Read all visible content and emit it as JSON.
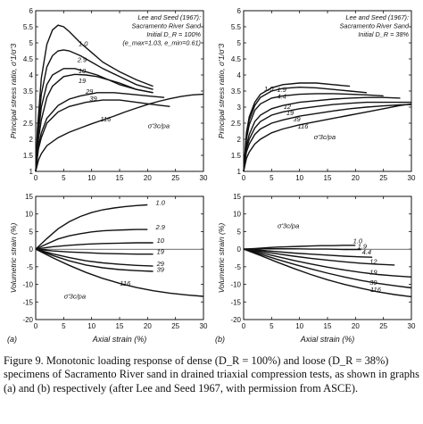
{
  "figure_caption": "Figure 9.  Monotonic loading response of dense (D_R = 100%) and loose (D_R = 38%) specimens of Sacramento River sand in drained triaxial compression tests, as shown in graphs (a) and (b) respectively (after Lee and Seed 1967, with permission from ASCE).",
  "chart_data": [
    {
      "id": "a-stress",
      "type": "line",
      "panel_label": "",
      "ylabel": "Principal stress ratio, σ'1/σ'3",
      "xlabel": "",
      "xlim": [
        0,
        30
      ],
      "ylim": [
        1,
        6
      ],
      "xticks": [
        0,
        5,
        10,
        15,
        20,
        25,
        30
      ],
      "yticks": [
        1,
        1.5,
        2,
        2.5,
        3,
        3.5,
        4,
        4.5,
        5,
        5.5,
        6
      ],
      "annotation": [
        "Lee and Seed (1967):",
        "Sacramento River Sand",
        "Initial D_R = 100%",
        "(e_max=1.03, e_min=0.61)"
      ],
      "label_key": "σ'3c/pa",
      "series": [
        {
          "name": "1.0",
          "x": [
            0,
            0.3,
            1,
            2,
            3,
            4,
            5,
            6,
            8,
            10,
            12,
            15,
            18,
            21
          ],
          "y": [
            1,
            2.3,
            3.9,
            4.95,
            5.4,
            5.55,
            5.5,
            5.35,
            5.0,
            4.7,
            4.4,
            4.1,
            3.85,
            3.65
          ]
        },
        {
          "name": "2.9",
          "x": [
            0,
            0.4,
            1,
            2,
            3,
            4,
            5,
            6,
            8,
            10,
            12,
            15,
            18,
            21
          ],
          "y": [
            1,
            2.2,
            3.4,
            4.25,
            4.6,
            4.75,
            4.78,
            4.75,
            4.6,
            4.4,
            4.2,
            3.95,
            3.7,
            3.55
          ]
        },
        {
          "name": "10",
          "x": [
            0,
            0.5,
            1,
            2,
            3,
            5,
            7,
            9,
            11,
            13,
            15,
            18,
            21
          ],
          "y": [
            1,
            2.2,
            3.0,
            3.7,
            4.0,
            4.2,
            4.2,
            4.1,
            4.0,
            3.85,
            3.75,
            3.55,
            3.45
          ]
        },
        {
          "name": "19",
          "x": [
            0,
            0.5,
            1,
            2,
            3,
            5,
            7,
            9,
            11,
            13,
            15,
            18,
            21
          ],
          "y": [
            1,
            2.0,
            2.6,
            3.3,
            3.65,
            3.95,
            4.02,
            4.0,
            3.95,
            3.85,
            3.7,
            3.55,
            3.45
          ]
        },
        {
          "name": "29",
          "x": [
            0,
            0.5,
            1,
            2,
            4,
            6,
            8,
            11,
            14,
            17,
            20,
            23
          ],
          "y": [
            1,
            1.8,
            2.2,
            2.65,
            3.05,
            3.25,
            3.35,
            3.45,
            3.45,
            3.4,
            3.35,
            3.3
          ]
        },
        {
          "name": "39",
          "x": [
            0,
            0.5,
            1,
            2,
            4,
            6,
            9,
            12,
            15,
            18,
            21,
            24
          ],
          "y": [
            1,
            1.7,
            2.05,
            2.5,
            2.85,
            3.02,
            3.15,
            3.22,
            3.22,
            3.15,
            3.08,
            3.02
          ]
        },
        {
          "name": "116",
          "x": [
            0,
            0.5,
            1,
            2,
            4,
            6,
            8,
            10,
            12,
            14,
            16,
            18,
            20,
            22,
            24,
            26,
            28,
            30
          ],
          "y": [
            1,
            1.35,
            1.55,
            1.8,
            2.05,
            2.22,
            2.35,
            2.48,
            2.6,
            2.72,
            2.85,
            2.97,
            3.08,
            3.18,
            3.26,
            3.33,
            3.38,
            3.4
          ]
        }
      ],
      "labels": [
        {
          "text": "1.0",
          "x": 8.5,
          "y": 4.9
        },
        {
          "text": "2.9",
          "x": 8.3,
          "y": 4.4
        },
        {
          "text": "10",
          "x": 8.3,
          "y": 4.05
        },
        {
          "text": "19",
          "x": 8.3,
          "y": 3.75
        },
        {
          "text": "29",
          "x": 9.6,
          "y": 3.42
        },
        {
          "text": "39",
          "x": 10.3,
          "y": 3.2
        },
        {
          "text": "116",
          "x": 12.5,
          "y": 2.55
        }
      ]
    },
    {
      "id": "b-stress",
      "type": "line",
      "panel_label": "",
      "ylabel": "Principal stress ratio, σ'1/σ'3",
      "xlabel": "",
      "xlim": [
        0,
        30
      ],
      "ylim": [
        1,
        6
      ],
      "xticks": [
        0,
        5,
        10,
        15,
        20,
        25,
        30
      ],
      "yticks": [
        1,
        1.5,
        2,
        2.5,
        3,
        3.5,
        4,
        4.5,
        5,
        5.5,
        6
      ],
      "annotation": [
        "Lee and Seed (1967):",
        "Sacramento River Sand",
        "Initial D_R = 38%"
      ],
      "label_key": "σ'3c/pa",
      "series": [
        {
          "name": "1.0",
          "x": [
            0,
            0.5,
            1,
            2,
            3,
            5,
            7,
            10,
            13,
            16,
            19
          ],
          "y": [
            1,
            2.2,
            2.7,
            3.15,
            3.4,
            3.6,
            3.7,
            3.75,
            3.75,
            3.7,
            3.65
          ]
        },
        {
          "name": "1.9",
          "x": [
            0,
            0.5,
            1,
            2,
            3,
            5,
            7,
            10,
            13,
            16,
            19,
            22
          ],
          "y": [
            1,
            2.1,
            2.6,
            3.05,
            3.3,
            3.5,
            3.58,
            3.62,
            3.6,
            3.55,
            3.5,
            3.45
          ]
        },
        {
          "name": "4.4",
          "x": [
            0,
            0.5,
            1,
            2,
            3,
            5,
            7,
            10,
            13,
            16,
            19,
            22,
            25
          ],
          "y": [
            1,
            2.0,
            2.45,
            2.9,
            3.1,
            3.28,
            3.35,
            3.4,
            3.42,
            3.42,
            3.4,
            3.38,
            3.35
          ]
        },
        {
          "name": "12",
          "x": [
            0,
            0.5,
            1,
            2,
            3,
            5,
            7,
            10,
            13,
            16,
            19,
            22,
            25,
            28
          ],
          "y": [
            1,
            1.8,
            2.15,
            2.55,
            2.75,
            2.95,
            3.05,
            3.15,
            3.2,
            3.25,
            3.28,
            3.3,
            3.3,
            3.28
          ]
        },
        {
          "name": "19",
          "x": [
            0,
            0.5,
            1,
            2,
            3,
            5,
            7,
            10,
            13,
            16,
            19,
            22,
            25,
            28,
            30
          ],
          "y": [
            1,
            1.7,
            2.0,
            2.35,
            2.55,
            2.75,
            2.85,
            2.95,
            3.02,
            3.08,
            3.12,
            3.15,
            3.15,
            3.15,
            3.15
          ]
        },
        {
          "name": "39",
          "x": [
            0,
            0.5,
            1,
            2,
            3,
            5,
            7,
            10,
            13,
            16,
            19,
            22,
            25,
            28,
            30
          ],
          "y": [
            1,
            1.6,
            1.85,
            2.15,
            2.32,
            2.5,
            2.6,
            2.72,
            2.8,
            2.88,
            2.95,
            3.0,
            3.04,
            3.07,
            3.08
          ]
        },
        {
          "name": "116",
          "x": [
            0,
            0.5,
            1,
            2,
            3,
            5,
            7,
            10,
            13,
            16,
            19,
            22,
            25,
            28,
            30
          ],
          "y": [
            1,
            1.4,
            1.6,
            1.85,
            2.0,
            2.2,
            2.32,
            2.45,
            2.55,
            2.65,
            2.75,
            2.85,
            2.95,
            3.05,
            3.1
          ]
        }
      ],
      "labels": [
        {
          "text": "1.0",
          "x": 4.5,
          "y": 3.5
        },
        {
          "text": "1.9",
          "x": 6.8,
          "y": 3.47
        },
        {
          "text": "4.4",
          "x": 6.8,
          "y": 3.27
        },
        {
          "text": "12",
          "x": 7.8,
          "y": 2.95
        },
        {
          "text": "19",
          "x": 8.3,
          "y": 2.75
        },
        {
          "text": "39",
          "x": 9.5,
          "y": 2.55
        },
        {
          "text": "116",
          "x": 10.6,
          "y": 2.33
        }
      ]
    },
    {
      "id": "a-vol",
      "type": "line",
      "panel_label": "(a)",
      "ylabel": "Volumetric strain (%)",
      "xlabel": "Axial strain (%)",
      "xlim": [
        0,
        30
      ],
      "ylim": [
        -20,
        15
      ],
      "xticks": [
        0,
        5,
        10,
        15,
        20,
        25,
        30
      ],
      "yticks": [
        -20,
        -15,
        -10,
        -5,
        0,
        5,
        10,
        15
      ],
      "label_key": "σ'3c/pa",
      "series": [
        {
          "name": "1.0",
          "x": [
            0,
            2,
            4,
            6,
            8,
            10,
            12,
            14,
            16,
            18,
            20
          ],
          "y": [
            0,
            3.0,
            5.8,
            7.8,
            9.3,
            10.4,
            11.2,
            11.7,
            12.1,
            12.4,
            12.6
          ]
        },
        {
          "name": "2.9",
          "x": [
            0,
            2,
            4,
            6,
            8,
            10,
            12,
            14,
            16,
            18,
            20
          ],
          "y": [
            0,
            1.5,
            2.9,
            3.8,
            4.4,
            4.9,
            5.2,
            5.4,
            5.5,
            5.6,
            5.6
          ]
        },
        {
          "name": "10",
          "x": [
            0,
            3,
            6,
            9,
            12,
            15,
            18,
            21
          ],
          "y": [
            0,
            0.7,
            1.1,
            1.4,
            1.6,
            1.7,
            1.8,
            1.8
          ]
        },
        {
          "name": "19",
          "x": [
            0,
            3,
            6,
            9,
            12,
            15,
            18,
            21
          ],
          "y": [
            0,
            -0.5,
            -0.8,
            -1.0,
            -1.2,
            -1.3,
            -1.4,
            -1.4
          ]
        },
        {
          "name": "29",
          "x": [
            0,
            3,
            6,
            9,
            12,
            15,
            18,
            21
          ],
          "y": [
            0,
            -1.3,
            -2.4,
            -3.3,
            -3.9,
            -4.3,
            -4.6,
            -4.8
          ]
        },
        {
          "name": "39",
          "x": [
            0,
            3,
            6,
            9,
            12,
            15,
            18,
            21
          ],
          "y": [
            0,
            -1.8,
            -3.3,
            -4.5,
            -5.3,
            -5.8,
            -6.1,
            -6.3
          ]
        },
        {
          "name": "116",
          "x": [
            0,
            3,
            6,
            9,
            12,
            15,
            18,
            21,
            24,
            27,
            30
          ],
          "y": [
            0,
            -2.4,
            -4.6,
            -6.6,
            -8.3,
            -9.7,
            -10.9,
            -11.8,
            -12.5,
            -13.0,
            -13.4
          ]
        }
      ],
      "labels": [
        {
          "text": "1.0",
          "x": 22.3,
          "y": 12.6
        },
        {
          "text": "2.9",
          "x": 22.3,
          "y": 5.6
        },
        {
          "text": "10",
          "x": 22.3,
          "y": 1.8
        },
        {
          "text": "19",
          "x": 22.3,
          "y": -1.4
        },
        {
          "text": "29",
          "x": 22.3,
          "y": -4.8
        },
        {
          "text": "39",
          "x": 22.3,
          "y": -6.4
        },
        {
          "text": "116",
          "x": 16,
          "y": -10.4
        }
      ]
    },
    {
      "id": "b-vol",
      "type": "line",
      "panel_label": "(b)",
      "ylabel": "Volumetric strain (%)",
      "xlabel": "Axial strain (%)",
      "xlim": [
        0,
        30
      ],
      "ylim": [
        -20,
        15
      ],
      "xticks": [
        0,
        5,
        10,
        15,
        20,
        25,
        30
      ],
      "yticks": [
        -20,
        -15,
        -10,
        -5,
        0,
        5,
        10,
        15
      ],
      "label_key": "σ'3c/pa",
      "series": [
        {
          "name": "1.0",
          "x": [
            0,
            2,
            4,
            6,
            8,
            10,
            12,
            14,
            16,
            18,
            20
          ],
          "y": [
            0,
            0.2,
            0.4,
            0.6,
            0.7,
            0.8,
            0.9,
            1.0,
            1.0,
            1.1,
            1.1
          ]
        },
        {
          "name": "1.9",
          "x": [
            0,
            3,
            6,
            9,
            12,
            15,
            18,
            21
          ],
          "y": [
            0,
            0.1,
            0.1,
            0.1,
            0.0,
            0.0,
            -0.1,
            -0.1
          ]
        },
        {
          "name": "4.4",
          "x": [
            0,
            3,
            6,
            9,
            12,
            15,
            18,
            21,
            23
          ],
          "y": [
            0,
            -0.3,
            -0.7,
            -1.1,
            -1.4,
            -1.7,
            -2.0,
            -2.2,
            -2.3
          ]
        },
        {
          "name": "12",
          "x": [
            0,
            3,
            6,
            9,
            12,
            15,
            18,
            21,
            24,
            27
          ],
          "y": [
            0,
            -0.6,
            -1.3,
            -2.0,
            -2.6,
            -3.1,
            -3.6,
            -4.0,
            -4.3,
            -4.5
          ]
        },
        {
          "name": "19",
          "x": [
            0,
            3,
            6,
            9,
            12,
            15,
            18,
            21,
            24,
            27,
            30
          ],
          "y": [
            0,
            -1.0,
            -2.1,
            -3.2,
            -4.2,
            -5.1,
            -5.9,
            -6.6,
            -7.2,
            -7.6,
            -7.9
          ]
        },
        {
          "name": "39",
          "x": [
            0,
            3,
            6,
            9,
            12,
            15,
            18,
            21,
            24,
            27,
            30
          ],
          "y": [
            0,
            -1.4,
            -2.9,
            -4.3,
            -5.6,
            -6.8,
            -7.9,
            -8.9,
            -9.7,
            -10.4,
            -11.0
          ]
        },
        {
          "name": "116",
          "x": [
            0,
            3,
            6,
            9,
            12,
            15,
            18,
            21,
            24,
            27,
            30
          ],
          "y": [
            0,
            -1.8,
            -3.7,
            -5.5,
            -7.2,
            -8.7,
            -10.0,
            -11.1,
            -12.1,
            -12.9,
            -13.5
          ]
        }
      ],
      "labels": [
        {
          "text": "1.0",
          "x": 20.4,
          "y": 1.7
        },
        {
          "text": "1.9",
          "x": 21.2,
          "y": 0.1
        },
        {
          "text": "4.4",
          "x": 22.0,
          "y": -1.5
        },
        {
          "text": "12",
          "x": 23.2,
          "y": -4.2
        },
        {
          "text": "19",
          "x": 23.2,
          "y": -7.2
        },
        {
          "text": "39",
          "x": 23.2,
          "y": -10.1
        },
        {
          "text": "116",
          "x": 23.6,
          "y": -12.2
        }
      ]
    }
  ]
}
